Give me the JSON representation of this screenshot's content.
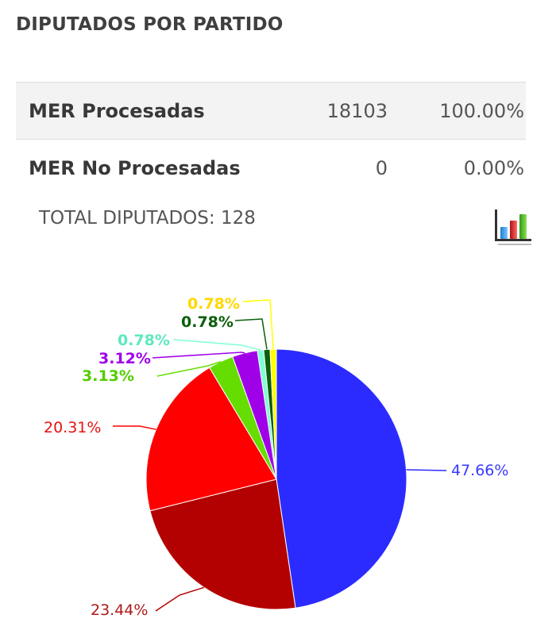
{
  "title": "DIPUTADOS POR PARTIDO",
  "stats_rows": [
    {
      "label": "MER Procesadas",
      "count": "18103",
      "percent": "100.00%"
    },
    {
      "label": "MER No Procesadas",
      "count": "0",
      "percent": "0.00%"
    }
  ],
  "total_label": "TOTAL DIPUTADOS: 128",
  "icons": {
    "chart_toggle": "bar-chart-icon"
  },
  "chart_data": {
    "type": "pie",
    "start_angle_deg": 0,
    "direction": "clockwise",
    "slices": [
      {
        "value": 47.66,
        "label": "47.66%",
        "color": "#2b2bff",
        "label_color": "#3a3aff"
      },
      {
        "value": 23.44,
        "label": "23.44%",
        "color": "#b30000",
        "label_color": "#b01818"
      },
      {
        "value": 20.31,
        "label": "20.31%",
        "color": "#ff0000",
        "label_color": "#e81010"
      },
      {
        "value": 3.13,
        "label": "3.13%",
        "color": "#66dd00",
        "label_color": "#55cc00"
      },
      {
        "value": 3.12,
        "label": "3.12%",
        "color": "#a000e8",
        "label_color": "#a000e8"
      },
      {
        "value": 0.78,
        "label": "0.78%",
        "color": "#7fffd4",
        "label_color": "#5ee8c0"
      },
      {
        "value": 0.78,
        "label": "0.78%",
        "color": "#0b5e0b",
        "label_color": "#0b5e0b"
      },
      {
        "value": 0.78,
        "label": "0.78%",
        "color": "#ffff00",
        "label_color": "#ffd700"
      }
    ]
  }
}
